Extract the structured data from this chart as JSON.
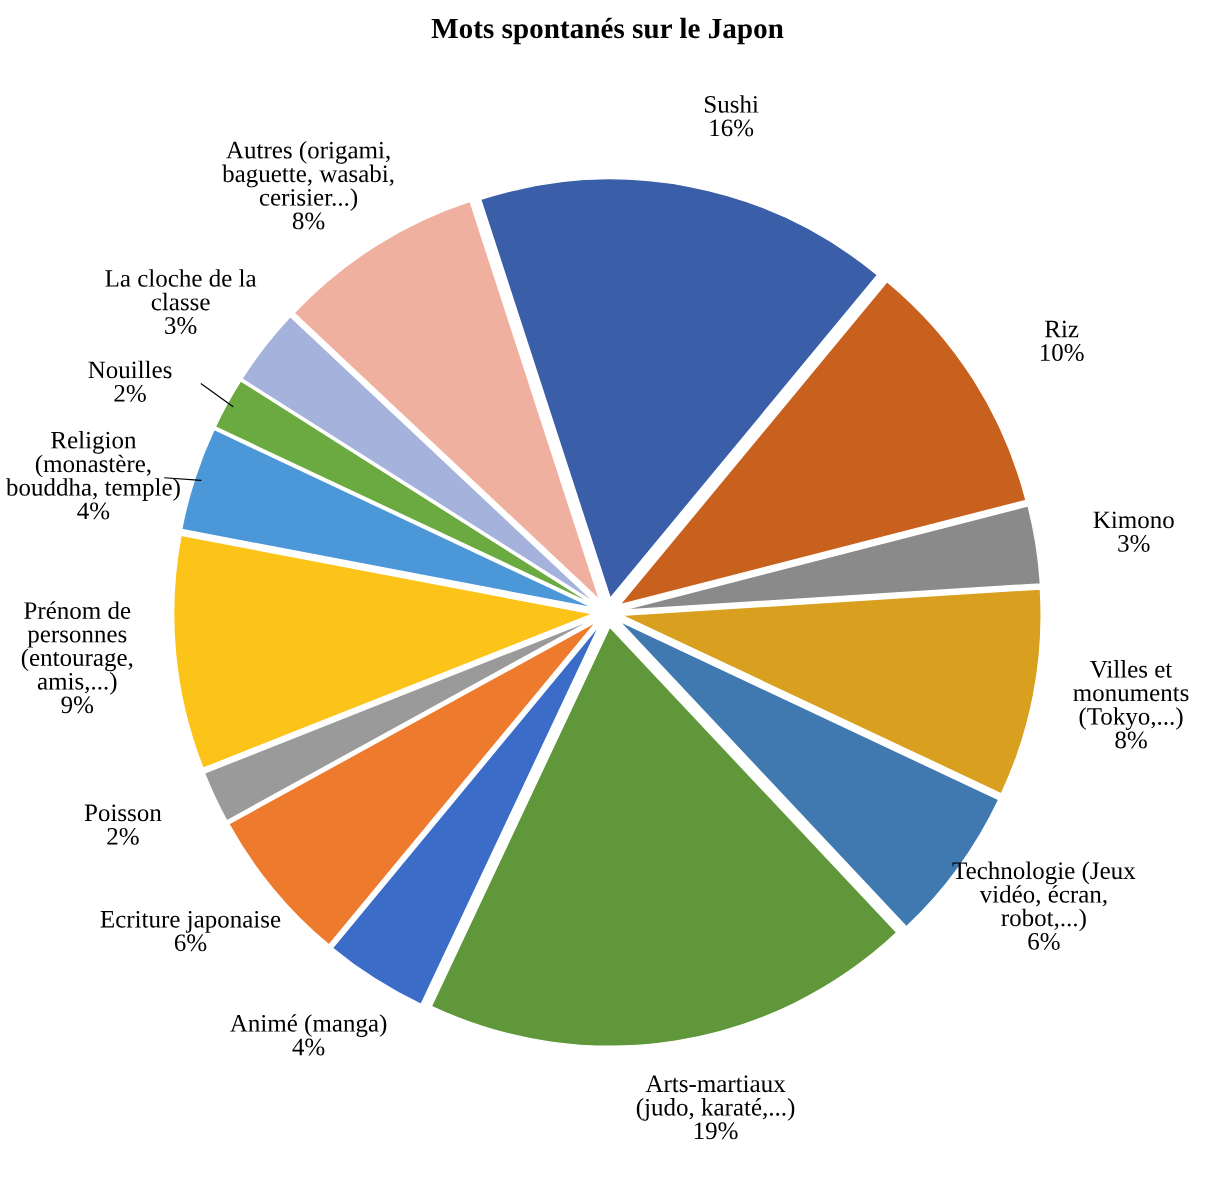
{
  "chart_data": {
    "type": "pie",
    "title": "Mots spontanés sur le Japon",
    "categories": [
      "Sushi",
      "Riz",
      "Kimono",
      "Villes et\nmonuments\n(Tokyo,...)",
      "Technologie (Jeux\nvidéo, écran,\nrobot,...)",
      "Arts-martiaux\n(judo, karaté,...)",
      "Animé (manga)",
      "Ecriture japonaise",
      "Poisson",
      "Prénom de\npersonnes\n(entourage,\namis,...)",
      "Religion\n(monastère,\nbouddha, temple)",
      "Nouilles",
      "La cloche de la\nclasse",
      "Autres (origami,\nbaguette, wasabi,\ncerisier...)"
    ],
    "values": [
      16,
      10,
      3,
      8,
      6,
      19,
      4,
      6,
      2,
      9,
      4,
      2,
      3,
      8
    ],
    "value_labels": [
      "16%",
      "10%",
      "3%",
      "8%",
      "6%",
      "19%",
      "4%",
      "6%",
      "2%",
      "9%",
      "4%",
      "2%",
      "3%",
      "8%"
    ],
    "colors": [
      "#3a5ea8",
      "#c8601e",
      "#8a8a8a",
      "#d9a020",
      "#4078b0",
      "#5f973a",
      "#3b6cc8",
      "#ee7a2e",
      "#9a9a9a",
      "#fcc419",
      "#4b97d8",
      "#6aaa40",
      "#a5b2dc",
      "#f0b0a0"
    ],
    "legend": false
  }
}
